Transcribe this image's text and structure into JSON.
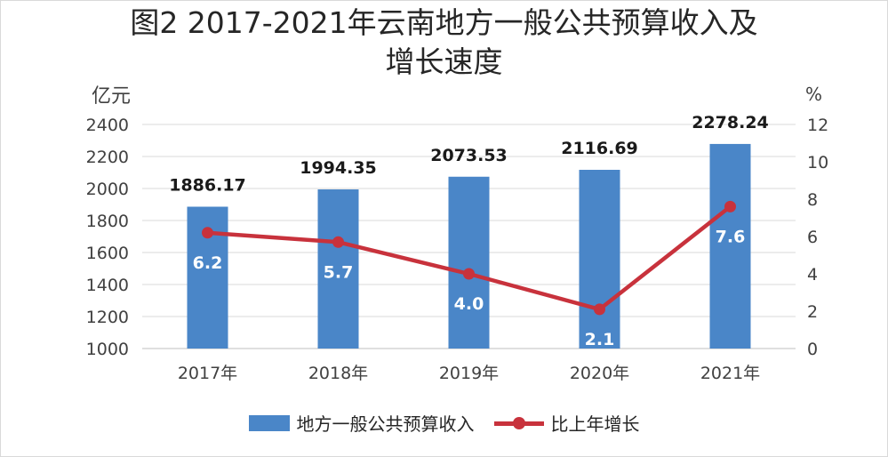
{
  "title_line1": "图2 2017-2021年云南地方一般公共预算收入及",
  "title_line2": "增长速度",
  "unit_left": "亿元",
  "unit_right": "%",
  "legend": {
    "bar_label": "地方一般公共预算收入",
    "line_label": "比上年增长"
  },
  "colors": {
    "bar": "#4a86c8",
    "line": "#c8323c",
    "grid": "#d9d9d9"
  },
  "chart_data": {
    "type": "bar",
    "categories": [
      "2017年",
      "2018年",
      "2019年",
      "2020年",
      "2021年"
    ],
    "series": [
      {
        "name": "地方一般公共预算收入",
        "type": "bar",
        "axis": "left",
        "values": [
          1886.17,
          1994.35,
          2073.53,
          2116.69,
          2278.24
        ],
        "labels": [
          "1886.17",
          "1994.35",
          "2073.53",
          "2116.69",
          "2278.24"
        ]
      },
      {
        "name": "比上年增长",
        "type": "line",
        "axis": "right",
        "values": [
          6.2,
          5.7,
          4.0,
          2.1,
          7.6
        ],
        "labels": [
          "6.2",
          "5.7",
          "4.0",
          "2.1",
          "7.6"
        ]
      }
    ],
    "y_left": {
      "min": 1000,
      "max": 2400,
      "ticks": [
        "1000",
        "1200",
        "1400",
        "1600",
        "1800",
        "2000",
        "2200",
        "2400"
      ]
    },
    "y_right": {
      "min": 0,
      "max": 12,
      "ticks": [
        "0",
        "2",
        "4",
        "6",
        "8",
        "10",
        "12"
      ]
    },
    "grid": true,
    "legend_position": "bottom"
  }
}
